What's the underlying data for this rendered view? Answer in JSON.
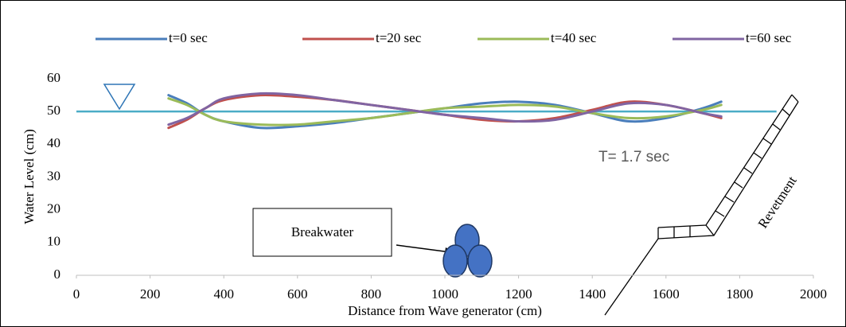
{
  "chart_data": {
    "type": "line",
    "x_label": "Distance from Wave generator (cm)",
    "y_label": "Water Level  (cm)",
    "xlim": [
      0,
      2000
    ],
    "xticks": [
      0,
      200,
      400,
      600,
      800,
      1000,
      1200,
      1400,
      1600,
      1800,
      2000
    ],
    "ylim": [
      0,
      60
    ],
    "yticks": [
      0,
      10,
      20,
      30,
      40,
      50,
      60
    ],
    "grid": false,
    "legend": "top",
    "x": [
      250,
      300,
      350,
      400,
      500,
      600,
      700,
      800,
      900,
      1000,
      1100,
      1200,
      1300,
      1400,
      1500,
      1600,
      1700,
      1750
    ],
    "series": [
      {
        "name": "t=0 sec",
        "color": "#4a7ebb",
        "values": [
          55,
          52.5,
          49,
          47,
          45,
          45.5,
          46.5,
          48,
          49.5,
          51,
          52.5,
          53,
          52,
          49.5,
          47,
          48,
          51,
          53
        ]
      },
      {
        "name": "t=20 sec",
        "color": "#c0504d",
        "values": [
          45,
          47.5,
          51,
          53.5,
          55,
          54.5,
          53.5,
          52,
          50.5,
          49,
          47.5,
          47,
          48,
          50.5,
          53,
          52,
          49.5,
          48
        ]
      },
      {
        "name": "t=40 sec",
        "color": "#9bbb59",
        "values": [
          54,
          52,
          49,
          47,
          46,
          46,
          47,
          48,
          49.5,
          51,
          51.5,
          52,
          51.5,
          49.5,
          48,
          48.5,
          50.5,
          52
        ]
      },
      {
        "name": "t=60 sec",
        "color": "#8064a2",
        "values": [
          46,
          48,
          51,
          54,
          55.5,
          55,
          53.5,
          52,
          50.5,
          49,
          48,
          47,
          47.5,
          50,
          52.5,
          52,
          49.5,
          48.5
        ]
      }
    ],
    "still_water_level": {
      "x": [
        0,
        1900
      ],
      "values": [
        50,
        50
      ],
      "color": "#4bacc6"
    },
    "annotations": [
      "T= 1.7 sec",
      "Breakwater",
      "Revetment"
    ]
  }
}
